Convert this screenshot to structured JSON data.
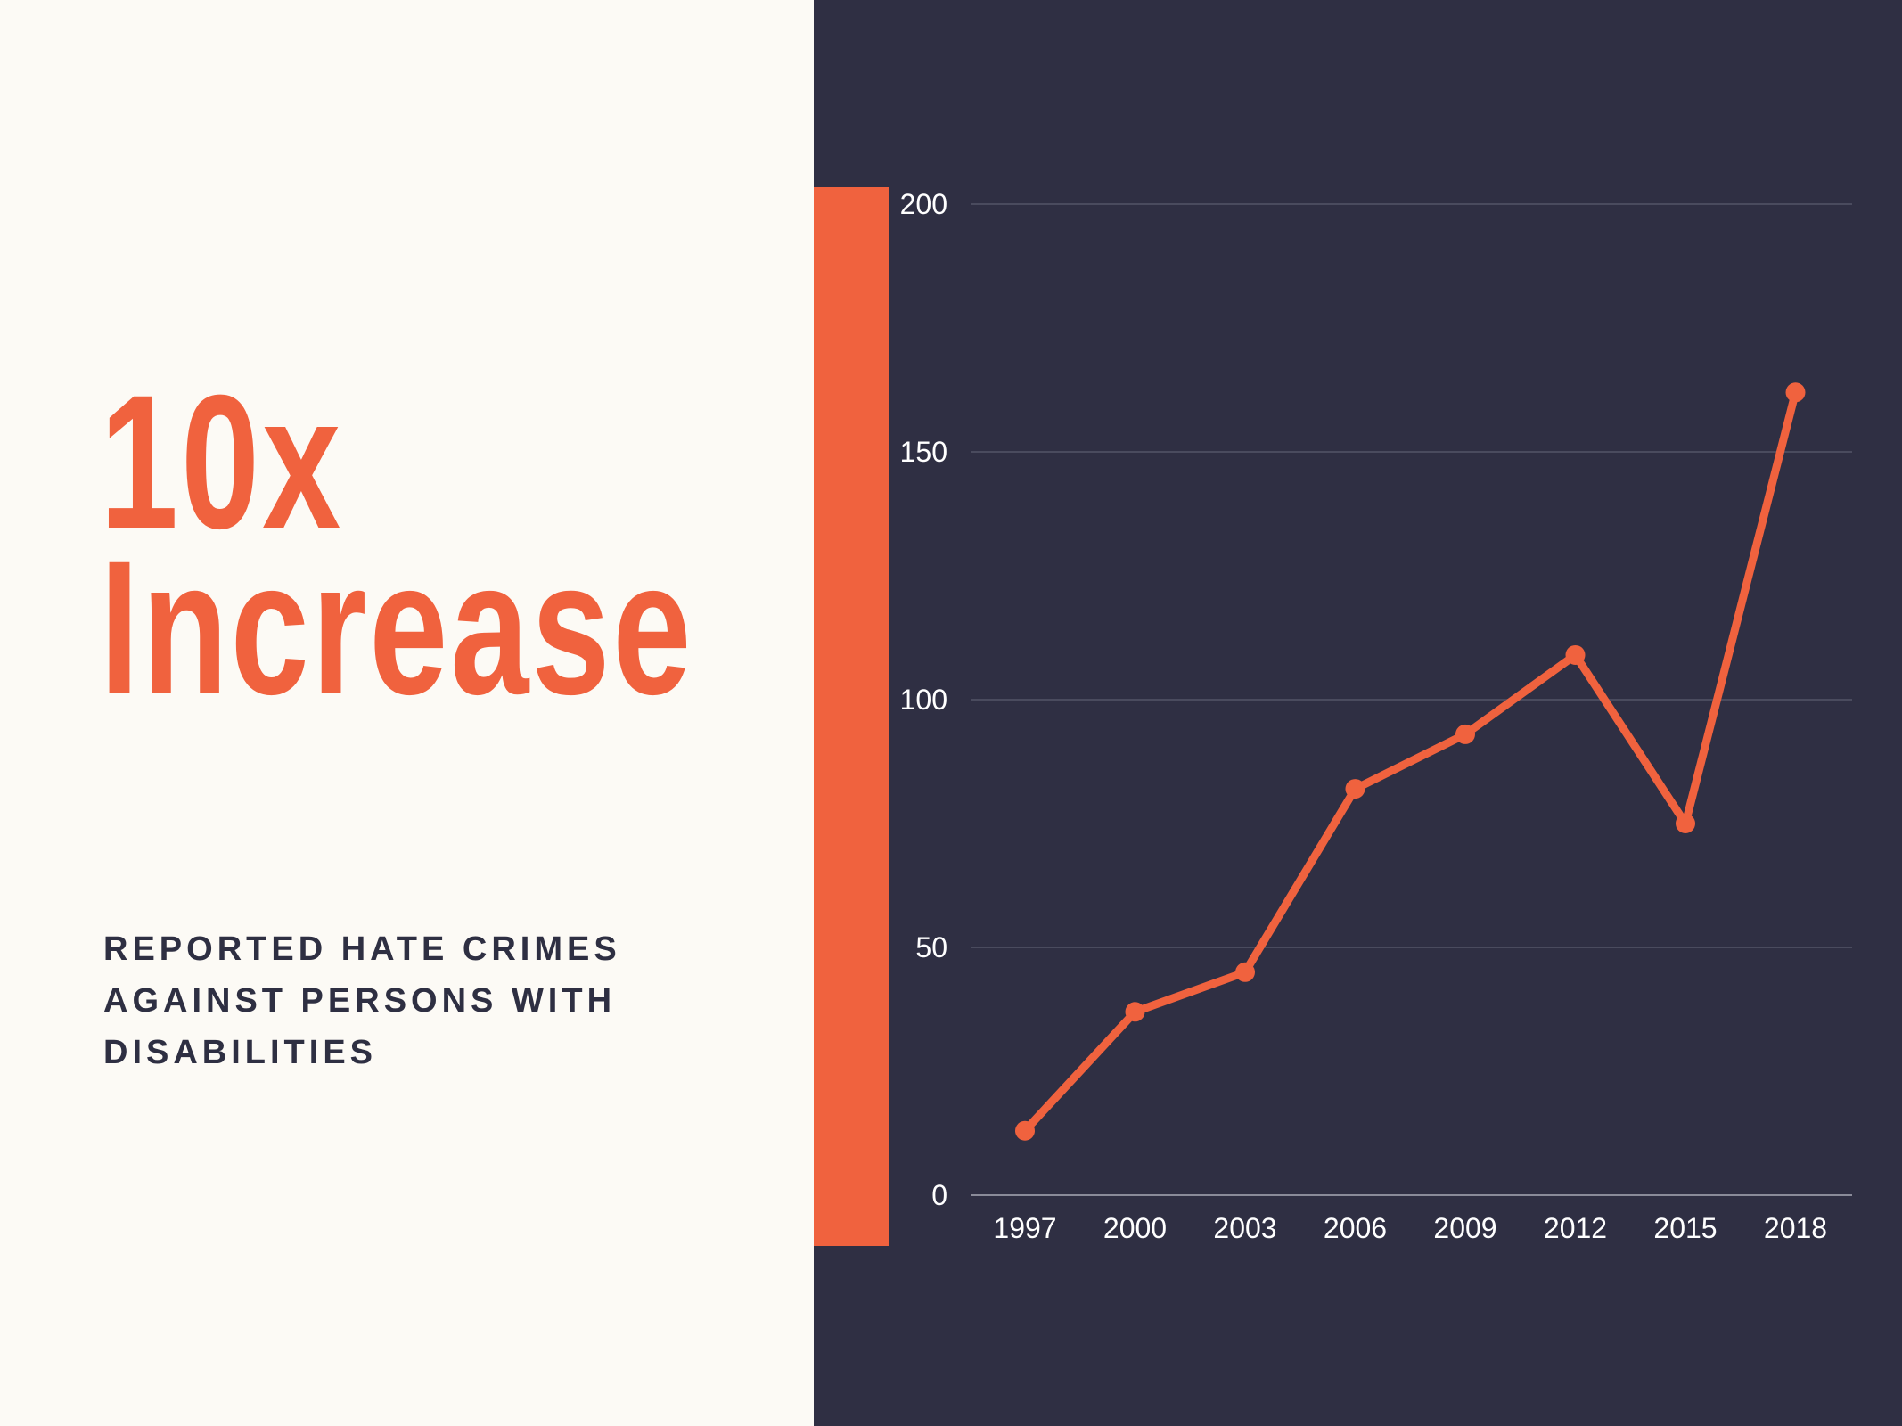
{
  "headline": {
    "line1": "10x",
    "line2": "Increase"
  },
  "subtitle": "REPORTED HATE CRIMES AGAINST PERSONS WITH DISABILITIES",
  "colors": {
    "accent": "#f0623e",
    "chart_bg": "#2f2f43",
    "page_bg": "#fcfaf5",
    "text_dark": "#2e2f42",
    "grid": "#4a4b5e"
  },
  "chart_data": {
    "type": "line",
    "categories": [
      "1997",
      "2000",
      "2003",
      "2006",
      "2009",
      "2012",
      "2015",
      "2018"
    ],
    "values": [
      13,
      37,
      45,
      82,
      93,
      109,
      75,
      162
    ],
    "ylim": [
      0,
      200
    ],
    "yticks": [
      "0",
      "50",
      "100",
      "150",
      "200"
    ],
    "grid": true,
    "markers": true
  }
}
